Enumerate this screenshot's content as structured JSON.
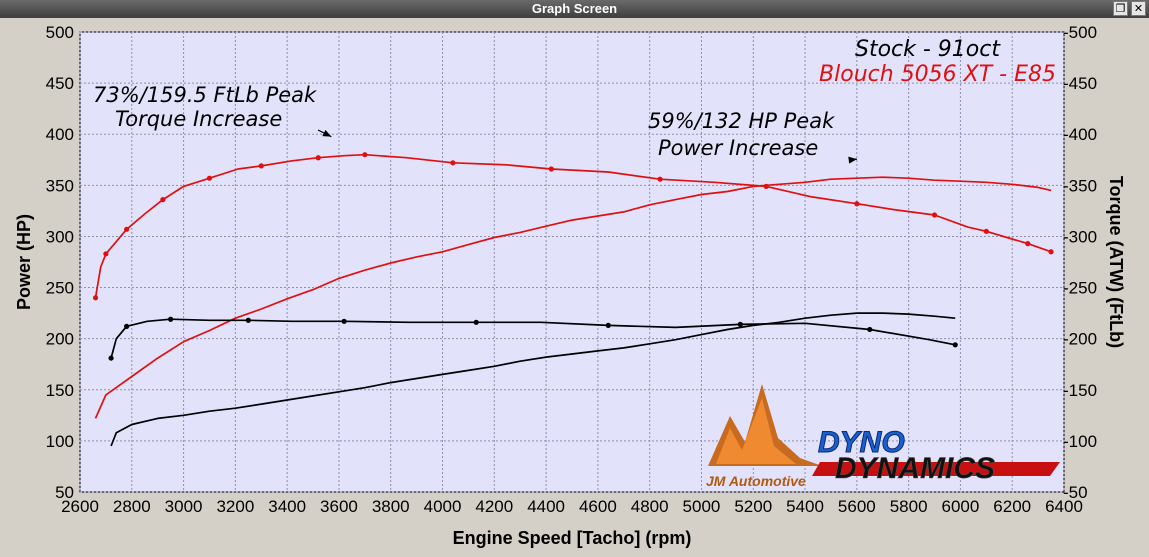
{
  "window": {
    "title": "Graph Screen",
    "restore_icon": "restore-icon",
    "close_icon": "close-icon",
    "restore_glyph": "❐",
    "close_glyph": "✕"
  },
  "chart_data": {
    "type": "line",
    "title": "",
    "xlabel": "Engine Speed [Tacho] (rpm)",
    "ylabel_left": "Power (HP)",
    "ylabel_right": "Torque (ATW) (FtLb)",
    "xlim": [
      2600,
      6400
    ],
    "ylim_left": [
      50,
      500
    ],
    "ylim_right": [
      50,
      500
    ],
    "x_ticks": [
      2600,
      2800,
      3000,
      3200,
      3400,
      3600,
      3800,
      4000,
      4200,
      4400,
      4600,
      4800,
      5000,
      5200,
      5400,
      5600,
      5800,
      6000,
      6200,
      6400
    ],
    "y_ticks_left": [
      50,
      100,
      150,
      200,
      250,
      300,
      350,
      400,
      450,
      500
    ],
    "y_ticks_right": [
      "-50",
      "-100",
      "-150",
      "-200",
      "-250",
      "-300",
      "-350",
      "-400",
      "-450",
      "-500"
    ],
    "grid": true,
    "legend_position": "top-right",
    "legend": [
      {
        "label": "Stock - 91oct",
        "color": "#000000"
      },
      {
        "label": "Blouch 5056 XT - E85",
        "color": "#e01010"
      }
    ],
    "annotations": [
      {
        "lines": [
          "73%/159.5 FtLb Peak",
          "Torque Increase"
        ],
        "arrow_to": {
          "x": 3640,
          "y": 380
        }
      },
      {
        "lines": [
          "59%/132 HP Peak",
          "Power Increase"
        ],
        "arrow_to": {
          "x": 5670,
          "y": 358
        }
      }
    ],
    "series": [
      {
        "name": "Blouch 5056 XT - E85",
        "quantity": "Torque",
        "color": "#e01010",
        "x": [
          2660,
          2680,
          2700,
          2740,
          2780,
          2850,
          2920,
          3000,
          3100,
          3210,
          3300,
          3420,
          3520,
          3620,
          3700,
          3860,
          4040,
          4250,
          4420,
          4640,
          4840,
          5050,
          5250,
          5420,
          5600,
          5750,
          5900,
          6030,
          6100,
          6180,
          6260,
          6350
        ],
        "y": [
          240,
          270,
          283,
          295,
          307,
          322,
          336,
          349,
          357,
          366,
          369,
          374,
          377,
          379,
          380,
          377,
          372,
          370,
          366,
          363,
          356,
          353,
          349,
          339,
          332,
          326,
          321,
          309,
          305,
          299,
          293,
          285
        ]
      },
      {
        "name": "Blouch 5056 XT - E85",
        "quantity": "Power",
        "color": "#e01010",
        "x": [
          2660,
          2700,
          2800,
          2900,
          3000,
          3100,
          3200,
          3300,
          3400,
          3500,
          3600,
          3700,
          3800,
          3900,
          4000,
          4100,
          4200,
          4300,
          4400,
          4500,
          4600,
          4700,
          4800,
          4900,
          5000,
          5100,
          5200,
          5300,
          5400,
          5500,
          5600,
          5700,
          5800,
          5900,
          6000,
          6100,
          6200,
          6300,
          6350
        ],
        "y": [
          122,
          145,
          163,
          181,
          197,
          208,
          220,
          229,
          239,
          248,
          259,
          267,
          274,
          280,
          285,
          292,
          299,
          304,
          310,
          316,
          320,
          324,
          331,
          336,
          341,
          344,
          349,
          351,
          353,
          356,
          357,
          358,
          357,
          355,
          354,
          353,
          351,
          348,
          345
        ]
      },
      {
        "name": "Stock - 91oct",
        "quantity": "Torque",
        "color": "#000000",
        "x": [
          2720,
          2740,
          2780,
          2860,
          2950,
          3100,
          3250,
          3420,
          3620,
          3870,
          4130,
          4380,
          4640,
          4900,
          5150,
          5400,
          5650,
          5880,
          5980
        ],
        "y": [
          181,
          200,
          212,
          217,
          219,
          218,
          218,
          217,
          217,
          216,
          216,
          216,
          213,
          211,
          214,
          215,
          209,
          199,
          194
        ]
      },
      {
        "name": "Stock - 91oct",
        "quantity": "Power",
        "color": "#000000",
        "x": [
          2720,
          2740,
          2800,
          2900,
          3000,
          3100,
          3200,
          3300,
          3400,
          3500,
          3600,
          3700,
          3800,
          3900,
          4000,
          4100,
          4200,
          4300,
          4400,
          4500,
          4600,
          4700,
          4800,
          4900,
          5000,
          5100,
          5200,
          5300,
          5400,
          5500,
          5600,
          5700,
          5800,
          5900,
          5980
        ],
        "y": [
          95,
          108,
          116,
          122,
          125,
          129,
          132,
          136,
          140,
          144,
          148,
          152,
          157,
          161,
          165,
          169,
          173,
          178,
          182,
          185,
          188,
          191,
          195,
          199,
          204,
          209,
          213,
          216,
          220,
          223,
          225,
          225,
          224,
          222,
          220
        ]
      }
    ]
  },
  "logos": {
    "jm_text": "JM Automotive",
    "dyno_line1": "DYNO",
    "dyno_line2": "DYNAMICS"
  }
}
